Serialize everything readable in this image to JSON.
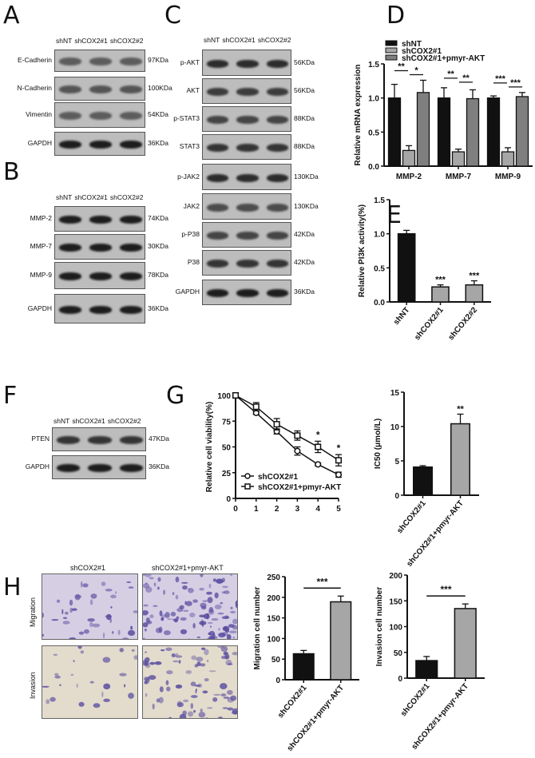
{
  "panels": {
    "A": "A",
    "B": "B",
    "C": "C",
    "D": "D",
    "E": "E",
    "F": "F",
    "G": "G",
    "H": "H"
  },
  "blot_header": [
    "shNT",
    "shCOX2#1",
    "shCOX2#2"
  ],
  "blots": {
    "A": [
      {
        "label": "E-Cadherin",
        "kda": "97KDa"
      },
      {
        "label": "N-Cadherin",
        "kda": "100KDa"
      },
      {
        "label": "Vimentin",
        "kda": "54KDa"
      },
      {
        "label": "GAPDH",
        "kda": "36KDa"
      }
    ],
    "B": [
      {
        "label": "MMP-2",
        "kda": "74KDa"
      },
      {
        "label": "MMP-7",
        "kda": "30KDa"
      },
      {
        "label": "MMP-9",
        "kda": "78KDa"
      },
      {
        "label": "GAPDH",
        "kda": "36KDa"
      }
    ],
    "C": [
      {
        "label": "p-AKT",
        "kda": "56KDa"
      },
      {
        "label": "AKT",
        "kda": "56KDa"
      },
      {
        "label": "p-STAT3",
        "kda": "88KDa"
      },
      {
        "label": "STAT3",
        "kda": "88KDa"
      },
      {
        "label": "p-JAK2",
        "kda": "130KDa"
      },
      {
        "label": "JAK2",
        "kda": "130KDa"
      },
      {
        "label": "p-P38",
        "kda": "42KDa"
      },
      {
        "label": "P38",
        "kda": "42KDa"
      },
      {
        "label": "GAPDH",
        "kda": "36KDa"
      }
    ],
    "F": [
      {
        "label": "PTEN",
        "kda": "47KDa"
      },
      {
        "label": "GAPDH",
        "kda": "36KDa"
      }
    ]
  },
  "H": {
    "columns": [
      "shCOX2#1",
      "shCOX2#1+pmyr-AKT"
    ],
    "rows": [
      "Migration",
      "Invasion"
    ]
  },
  "colors": {
    "black": "#111111",
    "light_gray": "#a6a6a6",
    "mid_gray": "#7f7f7f",
    "micrograph_bg": "#d9d3e6",
    "stain": "#5b4ea0"
  },
  "chart_data": [
    {
      "id": "D",
      "type": "bar",
      "ylabel": "Relative mRNA expression",
      "categories": [
        "MMP-2",
        "MMP-7",
        "MMP-9"
      ],
      "ylim": [
        0,
        1.5
      ],
      "yticks": [
        "0.0",
        "0.5",
        "1.0",
        "1.5"
      ],
      "legend": "top-left",
      "series": [
        {
          "name": "shNT",
          "values": [
            1.0,
            1.0,
            1.0
          ],
          "errors": [
            0.2,
            0.15,
            0.03
          ],
          "color": "#111111"
        },
        {
          "name": "shCOX2#1",
          "values": [
            0.23,
            0.21,
            0.21
          ],
          "errors": [
            0.07,
            0.04,
            0.06
          ],
          "color": "#a6a6a6"
        },
        {
          "name": "shCOX2#1+pmyr-AKT",
          "values": [
            1.08,
            0.99,
            1.02
          ],
          "errors": [
            0.18,
            0.13,
            0.06
          ],
          "color": "#7f7f7f"
        }
      ],
      "significance": [
        [
          "**",
          "*"
        ],
        [
          "**",
          "**"
        ],
        [
          "***",
          "***"
        ]
      ]
    },
    {
      "id": "E",
      "type": "bar",
      "ylabel": "Relative PI3K activity(%)",
      "categories": [
        "shNT",
        "shCOX2#1",
        "shCOX2#2"
      ],
      "ylim": [
        0,
        1.5
      ],
      "yticks": [
        "0.0",
        "0.5",
        "1.0",
        "1.5"
      ],
      "values": [
        1.0,
        0.22,
        0.25
      ],
      "errors": [
        0.05,
        0.03,
        0.06
      ],
      "colors": [
        "#111111",
        "#a6a6a6",
        "#a6a6a6"
      ],
      "annotations": [
        "",
        "***",
        "***"
      ]
    },
    {
      "id": "G-line",
      "type": "line",
      "ylabel": "Relative cell viability(%)",
      "x": [
        0,
        1,
        2,
        3,
        4,
        5
      ],
      "xticks": [
        "0",
        "1",
        "2",
        "3",
        "4",
        "5"
      ],
      "ylim": [
        0,
        100
      ],
      "yticks": [
        "0",
        "25",
        "50",
        "75",
        "100"
      ],
      "legend": "bottom-left",
      "series": [
        {
          "name": "shCOX2#1",
          "marker": "circle",
          "values": [
            100,
            83,
            65,
            46,
            33,
            23
          ],
          "errors": [
            0,
            1.5,
            2.5,
            4,
            1.5,
            2.5
          ]
        },
        {
          "name": "shCOX2#1+pmyr-AKT",
          "marker": "square",
          "values": [
            100,
            89,
            72,
            61,
            50,
            37
          ],
          "errors": [
            0,
            4,
            5.5,
            4.5,
            5.5,
            5.5
          ]
        }
      ],
      "annotations": [
        "",
        "",
        "",
        "",
        "*",
        "*"
      ]
    },
    {
      "id": "G-ic50",
      "type": "bar",
      "ylabel": "IC50 (μmol/L)",
      "categories": [
        "shCOX2#1",
        "shCOX2#1+pmyr-AKT"
      ],
      "ylim": [
        0,
        15
      ],
      "yticks": [
        "0",
        "5",
        "10",
        "15"
      ],
      "values": [
        4.1,
        10.4
      ],
      "errors": [
        0.2,
        1.4
      ],
      "colors": [
        "#111111",
        "#a6a6a6"
      ],
      "annotations": [
        "",
        "**"
      ]
    },
    {
      "id": "H-migration",
      "type": "bar",
      "ylabel": "Migration cell number",
      "categories": [
        "shCOX2#1",
        "shCOX2#1+pmyr-AKT"
      ],
      "ylim": [
        0,
        250
      ],
      "yticks": [
        "0",
        "50",
        "100",
        "150",
        "200",
        "250"
      ],
      "values": [
        63,
        189
      ],
      "errors": [
        8,
        14
      ],
      "colors": [
        "#111111",
        "#a6a6a6"
      ],
      "bracket": "***"
    },
    {
      "id": "H-invasion",
      "type": "bar",
      "ylabel": "Invasion cell number",
      "categories": [
        "shCOX2#1",
        "shCOX2#1+pmyr-AKT"
      ],
      "ylim": [
        0,
        200
      ],
      "yticks": [
        "0",
        "50",
        "100",
        "150",
        "200"
      ],
      "values": [
        34,
        135
      ],
      "errors": [
        8,
        9
      ],
      "colors": [
        "#111111",
        "#a6a6a6"
      ],
      "bracket": "***"
    }
  ]
}
